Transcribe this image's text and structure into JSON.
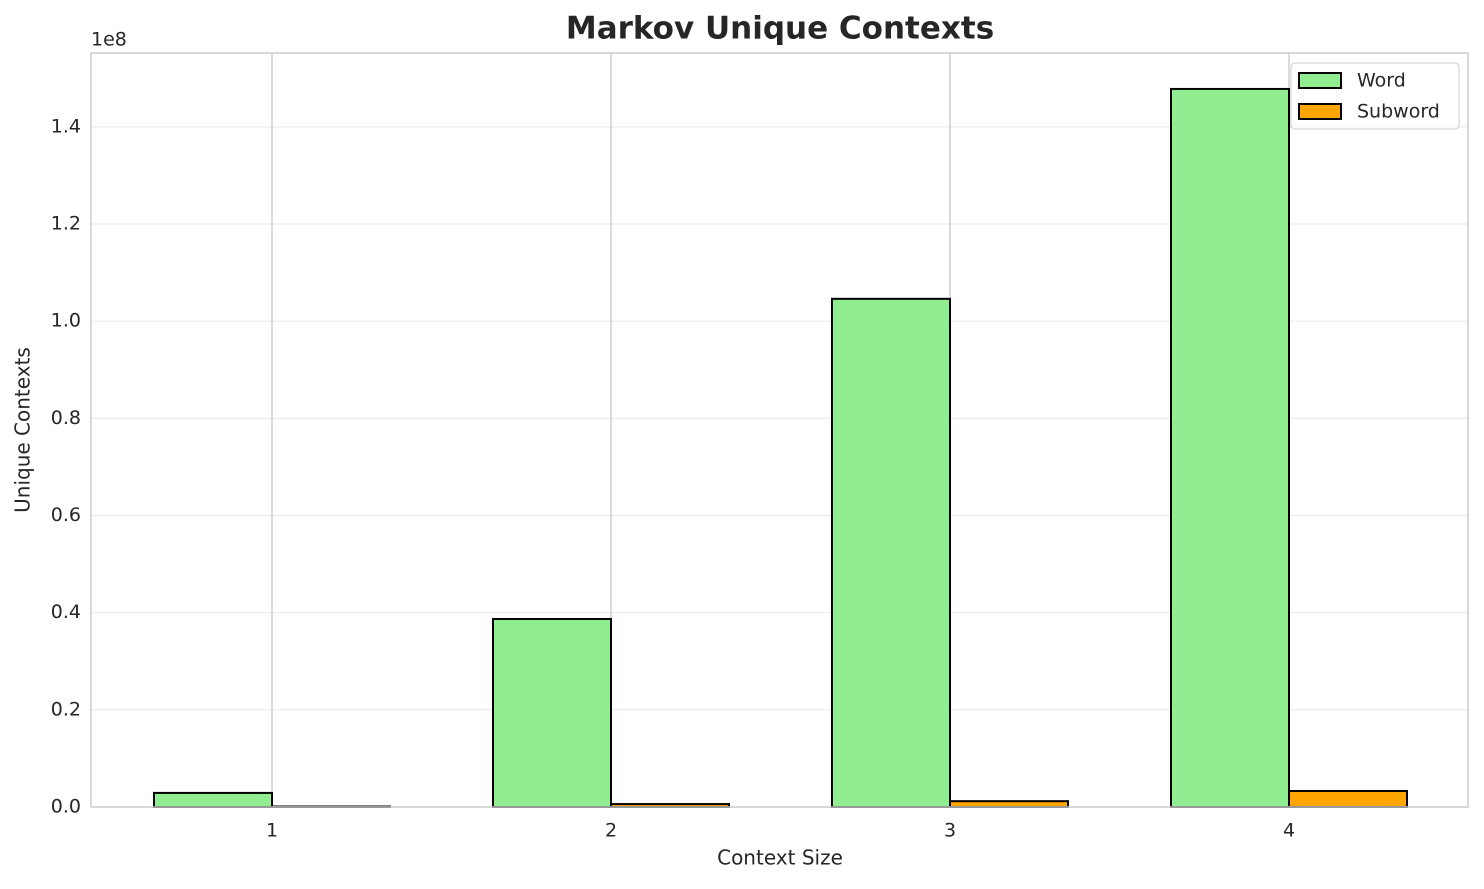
{
  "chart_data": {
    "type": "bar",
    "title": "Markov Unique Contexts",
    "x_label": "Context Size",
    "y_label": "Unique Contexts",
    "y_offset_label": "1e8",
    "categories": [
      "1",
      "2",
      "3",
      "4"
    ],
    "series": [
      {
        "name": "Word",
        "color": "#90ee90",
        "values": [
          0.029,
          0.387,
          1.046,
          1.478
        ]
      },
      {
        "name": "Subword",
        "color": "#ffa500",
        "values": [
          0.001,
          0.006,
          0.012,
          0.033
        ]
      }
    ],
    "ylim": [
      0,
      1.552
    ],
    "yticks": [
      {
        "value": 0,
        "label": "0.0"
      },
      0.2,
      0.4,
      0.6,
      0.8,
      {
        "value": 1,
        "label": "1.0"
      },
      1.2,
      1.4
    ],
    "grid": true,
    "legend": "upper right"
  }
}
